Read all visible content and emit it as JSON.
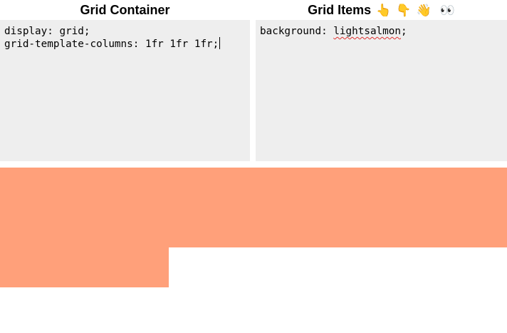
{
  "panels": {
    "container": {
      "title": "Grid Container",
      "code_line1": "display: grid;",
      "code_line2": "grid-template-columns: 1fr 1fr 1fr;"
    },
    "items": {
      "title": "Grid Items",
      "emojis": [
        "👆",
        "👇",
        "👋",
        "👀"
      ],
      "code_prop": "background: ",
      "code_value": "lightsalmon",
      "code_end": ";"
    }
  },
  "grid": {
    "item_color": "#ffa07a",
    "columns": 3,
    "item_count": 7
  },
  "colors": {
    "editor_bg": "#eeeeee",
    "spellcheck": "#e0322f"
  }
}
